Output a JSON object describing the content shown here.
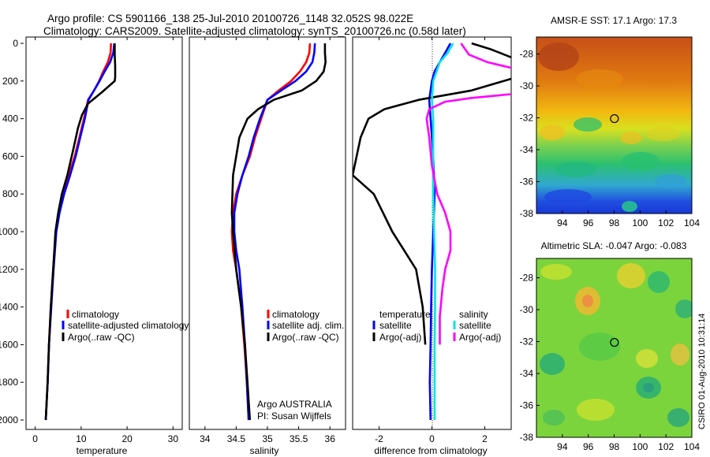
{
  "figure": {
    "title_line1": "Argo profile: CS 5901166_138 25-Jul-2010 20100726_1148 32.052S 98.022E",
    "title_line2": "Climatology: CARS2009. Satellite-adjusted climatology: synTS_20100726.nc (0.58d later)",
    "side_stamp": "CSIRO 01-Aug-2010 10:31:14",
    "credit_line1": "Argo AUSTRALIA",
    "credit_line2": "PI: Susan Wijffels"
  },
  "colors": {
    "climatology": "#ff0000",
    "satellite": "#0000ff",
    "argo": "#000000",
    "sat_salinity": "#00e5e5",
    "argo_salinity": "#ff00ff"
  },
  "chart_data": [
    {
      "type": "line",
      "id": "temperature",
      "xlabel": "temperature",
      "xlim": [
        -2,
        32
      ],
      "ylim": [
        0,
        2050
      ],
      "xticks": [
        "0",
        "10",
        "20",
        "30"
      ],
      "yticks": [
        "0",
        "200",
        "400",
        "600",
        "800",
        "1000",
        "1200",
        "1400",
        "1600",
        "1800",
        "2000"
      ],
      "legend": [
        "climatology",
        "satellite-adjusted climatology",
        "Argo(..raw -QC)"
      ],
      "series": [
        {
          "name": "climatology",
          "color": "#ff0000",
          "x": [
            16.5,
            16.4,
            15.8,
            14.8,
            13.9,
            12.8,
            11.5,
            10.6,
            9.6,
            8.6,
            7.3,
            6.0,
            5.1,
            4.5,
            3.9,
            3.4,
            3.0,
            2.7,
            2.5,
            2.3
          ],
          "y": [
            0,
            50,
            100,
            150,
            200,
            250,
            300,
            400,
            500,
            600,
            700,
            800,
            900,
            1000,
            1200,
            1400,
            1600,
            1800,
            1900,
            2000
          ]
        },
        {
          "name": "satellite-adjusted climatology",
          "color": "#0000ff",
          "x": [
            17.2,
            17.0,
            16.3,
            15.1,
            14.0,
            12.8,
            11.6,
            10.8,
            9.8,
            8.8,
            7.6,
            6.3,
            5.3,
            4.6,
            4.0,
            3.5,
            3.0,
            2.7,
            2.5,
            2.3
          ],
          "y": [
            0,
            50,
            100,
            150,
            200,
            250,
            300,
            400,
            500,
            600,
            700,
            800,
            900,
            1000,
            1200,
            1400,
            1600,
            1800,
            1900,
            2000
          ]
        },
        {
          "name": "Argo(..raw -QC)",
          "color": "#000000",
          "x": [
            17.3,
            17.3,
            17.4,
            17.4,
            17.3,
            14.5,
            11.5,
            10.2,
            9.3,
            8.4,
            7.0,
            5.8,
            5.0,
            4.4,
            3.9,
            3.4,
            3.0,
            2.7,
            2.5,
            2.3
          ],
          "y": [
            0,
            60,
            120,
            180,
            200,
            260,
            320,
            380,
            450,
            550,
            700,
            800,
            900,
            1000,
            1200,
            1400,
            1600,
            1800,
            1900,
            2000
          ]
        }
      ]
    },
    {
      "type": "line",
      "id": "salinity",
      "xlabel": "salinity",
      "xlim": [
        33.75,
        36.25
      ],
      "ylim": [
        0,
        2050
      ],
      "xticks": [
        "34",
        "34.5",
        "35",
        "35.5",
        "36"
      ],
      "legend": [
        "climatology",
        "satellite adj. clim.",
        "Argo(..raw -QC)"
      ],
      "series": [
        {
          "name": "climatology",
          "color": "#ff0000",
          "x": [
            35.68,
            35.67,
            35.62,
            35.52,
            35.38,
            35.18,
            35.0,
            34.9,
            34.8,
            34.72,
            34.6,
            34.5,
            34.45,
            34.43,
            34.45,
            34.5,
            34.58,
            34.63,
            34.67,
            34.7
          ],
          "y": [
            0,
            50,
            100,
            150,
            200,
            250,
            300,
            400,
            500,
            600,
            700,
            800,
            900,
            1000,
            1100,
            1200,
            1400,
            1600,
            1800,
            2000
          ]
        },
        {
          "name": "satellite adj. clim.",
          "color": "#0000ff",
          "x": [
            35.76,
            35.75,
            35.72,
            35.62,
            35.45,
            35.22,
            35.0,
            34.88,
            34.78,
            34.7,
            34.6,
            34.52,
            34.47,
            34.47,
            34.5,
            34.55,
            34.6,
            34.64,
            34.67,
            34.7
          ],
          "y": [
            0,
            50,
            100,
            150,
            200,
            250,
            300,
            400,
            500,
            600,
            700,
            800,
            900,
            1000,
            1100,
            1200,
            1400,
            1600,
            1800,
            2000
          ]
        },
        {
          "name": "Argo(..raw -QC)",
          "color": "#000000",
          "x": [
            35.92,
            35.92,
            35.93,
            35.9,
            35.78,
            35.55,
            35.1,
            34.85,
            34.68,
            34.55,
            34.45,
            34.43,
            34.45,
            34.5,
            34.58,
            34.64,
            34.68,
            34.7,
            34.72
          ],
          "y": [
            0,
            50,
            100,
            150,
            200,
            250,
            300,
            350,
            400,
            500,
            700,
            900,
            1000,
            1200,
            1400,
            1600,
            1800,
            1900,
            2000
          ]
        }
      ]
    },
    {
      "type": "line",
      "id": "difference",
      "xlabel": "difference from climatology",
      "xlim": [
        -3,
        3
      ],
      "ylim": [
        0,
        2050
      ],
      "xticks": [
        "-2",
        "0",
        "2"
      ],
      "legend_title_left": "temperature",
      "legend_title_right": "salinity",
      "legend": [
        "satellite",
        "Argo(-adj)",
        "satellite",
        "Argo(-adj)"
      ],
      "series": [
        {
          "name": "temperature satellite",
          "color": "#0000ff",
          "x": [
            0.7,
            0.5,
            0.3,
            0.1,
            0.0,
            -0.05,
            -0.1,
            -0.05,
            0.0,
            0.05,
            0.1,
            0.05,
            0.0,
            -0.03,
            -0.05,
            -0.08,
            -0.05
          ],
          "y": [
            0,
            50,
            100,
            150,
            200,
            250,
            300,
            400,
            500,
            600,
            800,
            1000,
            1200,
            1400,
            1600,
            1800,
            2000
          ]
        },
        {
          "name": "temperature Argo(-adj)",
          "color": "#000000",
          "x": [
            1.5,
            2.2,
            3.1,
            3.5,
            3.2,
            1.5,
            -0.5,
            -1.8,
            -2.4,
            -2.7,
            -3.0,
            -2.2,
            -1.5,
            -0.6,
            -0.35,
            -0.25
          ],
          "y": [
            0,
            30,
            80,
            120,
            180,
            250,
            300,
            350,
            400,
            500,
            700,
            800,
            1000,
            1200,
            1400,
            1600
          ]
        },
        {
          "name": "salinity satellite",
          "color": "#00e5e5",
          "x": [
            0.8,
            0.6,
            0.3,
            0.05,
            0.0,
            0.05,
            0.05,
            0.05,
            0.08,
            0.1,
            0.12,
            0.12,
            0.1,
            0.1,
            0.1
          ],
          "y": [
            0,
            50,
            100,
            200,
            300,
            400,
            600,
            800,
            1000,
            1100,
            1200,
            1400,
            1600,
            1800,
            2000
          ]
        },
        {
          "name": "salinity Argo(-adj)",
          "color": "#ff00ff",
          "x": [
            1.1,
            1.4,
            2.1,
            3.0,
            4.0,
            3.8,
            3.0,
            1.5,
            0.5,
            -0.1,
            -0.2,
            -0.1,
            0.0,
            0.2,
            0.5,
            0.7,
            0.7,
            0.5,
            0.4,
            0.3,
            0.3
          ],
          "y": [
            0,
            60,
            100,
            130,
            180,
            240,
            270,
            290,
            310,
            350,
            400,
            500,
            650,
            800,
            900,
            1000,
            1100,
            1200,
            1300,
            1450,
            1600
          ]
        }
      ]
    },
    {
      "type": "heatmap",
      "id": "sst",
      "title": "AMSR-E SST: 17.1 Argo: 17.3",
      "xlim": [
        92,
        104
      ],
      "ylim": [
        -38,
        -26
      ],
      "xticks": [
        "94",
        "96",
        "98",
        "100",
        "102",
        "104"
      ],
      "yticks": [
        "-28",
        "-30",
        "-32",
        "-34",
        "-36",
        "-38"
      ],
      "marker": {
        "lon": 98.022,
        "lat": -32.052
      }
    },
    {
      "type": "heatmap",
      "id": "sla",
      "title": "Altimetric SLA: -0.047 Argo: -0.083",
      "xlim": [
        92,
        104
      ],
      "ylim": [
        -38,
        -26
      ],
      "xticks": [
        "94",
        "96",
        "98",
        "100",
        "102",
        "104"
      ],
      "yticks": [
        "-28",
        "-30",
        "-32",
        "-34",
        "-36",
        "-38"
      ],
      "marker": {
        "lon": 98.022,
        "lat": -32.052
      }
    }
  ]
}
